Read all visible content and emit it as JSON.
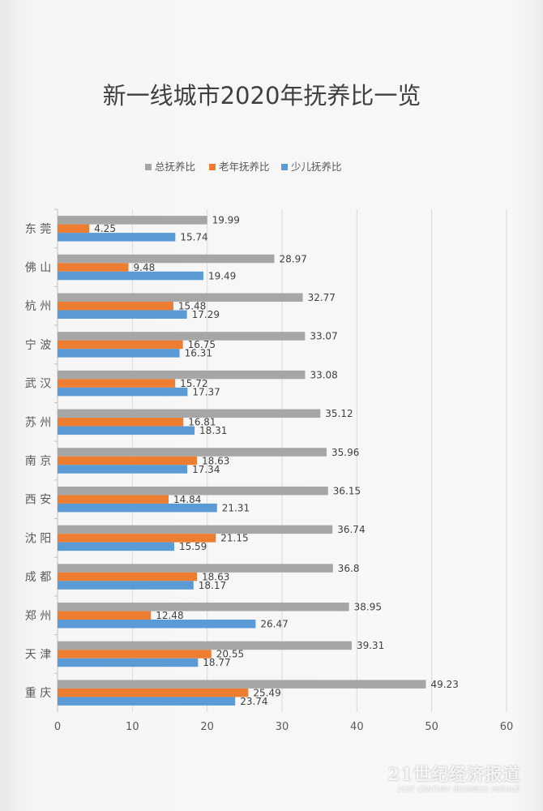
{
  "chart_data": {
    "type": "bar",
    "orientation": "horizontal",
    "title": "新一线城市2020年抚养比一览",
    "categories": [
      "东 莞",
      "佛 山",
      "杭 州",
      "宁 波",
      "武 汉",
      "苏 州",
      "南 京",
      "西 安",
      "沈 阳",
      "成 都",
      "郑 州",
      "天 津",
      "重 庆"
    ],
    "series": [
      {
        "name": "总抚养比",
        "color": "#a6a6a6",
        "values": [
          19.99,
          28.97,
          32.77,
          33.07,
          33.08,
          35.12,
          35.96,
          36.15,
          36.74,
          36.8,
          38.95,
          39.31,
          49.23
        ]
      },
      {
        "name": "老年抚养比",
        "color": "#ed7d31",
        "values": [
          4.25,
          9.48,
          15.48,
          16.75,
          15.72,
          16.81,
          18.63,
          14.84,
          21.15,
          18.63,
          12.48,
          20.55,
          25.49
        ]
      },
      {
        "name": "少儿抚养比",
        "color": "#5b9bd5",
        "values": [
          15.74,
          19.49,
          17.29,
          16.31,
          17.37,
          18.31,
          17.34,
          21.31,
          15.59,
          18.17,
          26.47,
          18.77,
          23.74
        ]
      }
    ],
    "xlim": [
      0,
      60
    ],
    "xticks": [
      0,
      10,
      20,
      30,
      40,
      50,
      60
    ],
    "grid": "vertical",
    "legend": "top-center",
    "data_labels": true
  },
  "watermark": {
    "main": "21世纪经济报道",
    "sub": "21ST CENTURY BUSINESS HERALD"
  }
}
